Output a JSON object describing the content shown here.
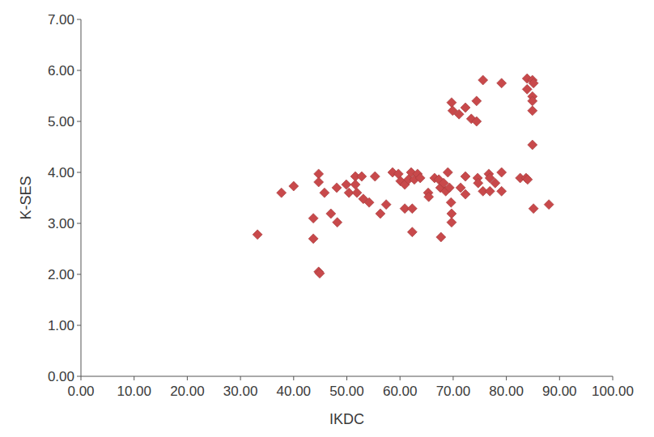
{
  "chart_data": {
    "type": "scatter",
    "xlabel": "IKDC",
    "ylabel": "K-SES",
    "color": "#c8494b",
    "marker": "diamond",
    "grid": false,
    "x": [
      33.2,
      37.7,
      40.0,
      43.7,
      43.7,
      44.7,
      44.7,
      44.7,
      44.9,
      45.8,
      47.0,
      48.1,
      48.2,
      49.9,
      50.4,
      51.6,
      51.6,
      51.9,
      52.8,
      53.1,
      54.2,
      55.3,
      56.3,
      57.4,
      58.6,
      59.7,
      60.1,
      60.9,
      60.9,
      61.6,
      62.1,
      62.3,
      62.3,
      62.7,
      63.3,
      63.8,
      65.3,
      65.4,
      66.5,
      67.3,
      67.6,
      67.7,
      68.2,
      68.6,
      69.0,
      69.3,
      69.6,
      69.7,
      69.7,
      69.7,
      69.9,
      71.1,
      71.4,
      72.3,
      72.3,
      72.3,
      73.4,
      74.4,
      74.4,
      74.6,
      74.7,
      75.6,
      75.6,
      76.7,
      76.9,
      76.9,
      77.9,
      79.1,
      79.1,
      79.1,
      82.6,
      83.7,
      83.9,
      83.9,
      84.0,
      84.9,
      84.9,
      84.9,
      85.1,
      84.9,
      84.9,
      85.1,
      88.0
    ],
    "values": [
      2.78,
      3.6,
      3.73,
      3.1,
      2.7,
      3.97,
      3.81,
      2.05,
      2.02,
      3.6,
      3.19,
      3.7,
      3.02,
      3.76,
      3.6,
      3.92,
      3.76,
      3.6,
      3.92,
      3.48,
      3.41,
      3.92,
      3.19,
      3.37,
      4.0,
      3.97,
      3.83,
      3.76,
      3.29,
      3.86,
      4.0,
      3.29,
      2.83,
      3.86,
      3.97,
      3.89,
      3.6,
      3.52,
      3.89,
      3.86,
      3.7,
      2.73,
      3.79,
      3.63,
      4.0,
      3.7,
      3.41,
      3.19,
      3.02,
      5.37,
      5.21,
      5.14,
      3.7,
      3.92,
      3.57,
      5.27,
      5.05,
      5.0,
      5.4,
      3.89,
      3.79,
      3.63,
      5.81,
      3.97,
      3.63,
      3.89,
      3.79,
      4.0,
      3.63,
      5.75,
      3.89,
      3.89,
      5.84,
      5.63,
      3.86,
      5.49,
      5.4,
      5.81,
      5.75,
      5.21,
      4.54,
      3.29,
      3.37
    ],
    "xlim": [
      0,
      100
    ],
    "xticks": [
      {
        "value": 0,
        "label": "0.00"
      },
      {
        "value": 10,
        "label": "10.00"
      },
      {
        "value": 20,
        "label": "20.00"
      },
      {
        "value": 30,
        "label": "30.00"
      },
      {
        "value": 40,
        "label": "40.00"
      },
      {
        "value": 50,
        "label": "50.00"
      },
      {
        "value": 60,
        "label": "60.00"
      },
      {
        "value": 70,
        "label": "70.00"
      },
      {
        "value": 80,
        "label": "80.00"
      },
      {
        "value": 90,
        "label": "90.00"
      },
      {
        "value": 100,
        "label": "100.00"
      }
    ],
    "ylim": [
      0,
      7
    ],
    "yticks": [
      {
        "value": 0,
        "label": "0.00"
      },
      {
        "value": 1,
        "label": "1.00"
      },
      {
        "value": 2,
        "label": "2.00"
      },
      {
        "value": 3,
        "label": "3.00"
      },
      {
        "value": 4,
        "label": "4.00"
      },
      {
        "value": 5,
        "label": "5.00"
      },
      {
        "value": 6,
        "label": "6.00"
      },
      {
        "value": 7,
        "label": "7.00"
      }
    ]
  }
}
